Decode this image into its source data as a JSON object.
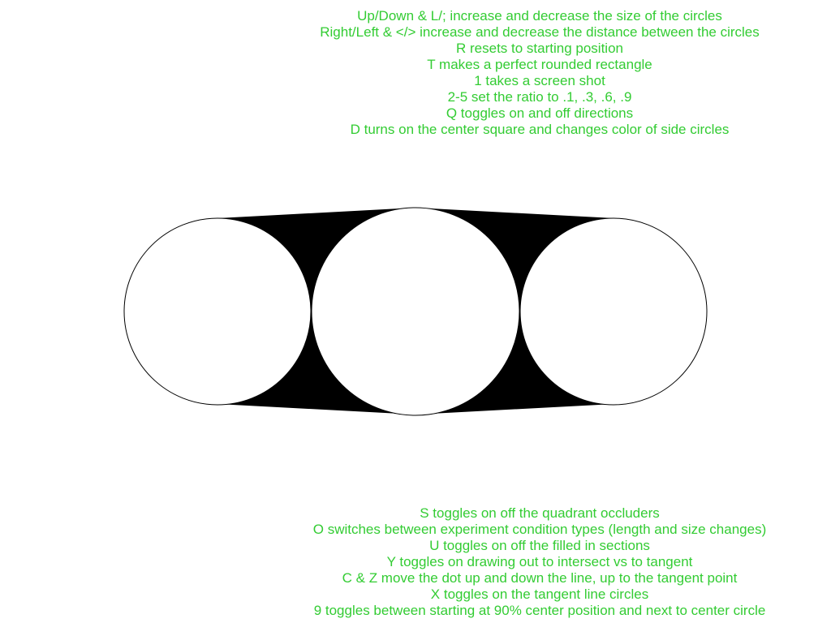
{
  "colors": {
    "background": "#ffffff",
    "instruction_text": "#33cc33",
    "fill": "#000000",
    "circle_fill": "#ffffff",
    "circle_stroke": "#000000"
  },
  "instructions_top": [
    "Up/Down & L/; increase and decrease the size of the circles",
    "Right/Left & </> increase and decrease the distance between the circles",
    "R resets to starting position",
    "T makes a perfect rounded rectangle",
    "1 takes a screen shot",
    "2-5 set the ratio to .1, .3, .6, .9",
    "Q toggles on and off directions",
    "D turns on the center square and changes color of side circles"
  ],
  "instructions_bottom": [
    "S toggles on off the quadrant occluders",
    "O switches between experiment condition types (length and size changes)",
    "U toggles on off the filled in sections",
    "Y toggles on drawing out to intersect vs to tangent",
    "C & Z move the dot up and down the line, up to the tangent point",
    "X toggles on the tangent line circles",
    "9 toggles between starting at 90% center position and next to center circle"
  ]
}
